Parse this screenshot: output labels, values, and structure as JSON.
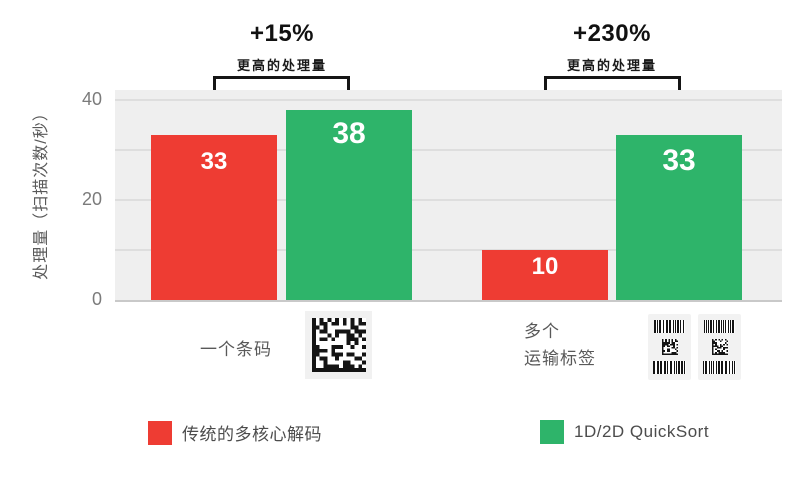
{
  "chart_data": {
    "type": "bar",
    "title": "",
    "categories": [
      "一个条码",
      "多个 运输标签"
    ],
    "series": [
      {
        "name": "传统的多核心解码",
        "color": "#ee3c33",
        "values": [
          33,
          10
        ]
      },
      {
        "name": "1D/2D QuickSort",
        "color": "#2eb46a",
        "values": [
          38,
          33
        ]
      }
    ],
    "ylabel": "处理量（扫描次数/秒）",
    "yticks": [
      0,
      20,
      40
    ],
    "ylim": [
      0,
      42
    ],
    "gridline_values": [
      10,
      20,
      30,
      40
    ],
    "grid": true,
    "legend_position": "bottom",
    "annotations": [
      {
        "percent": "+15%",
        "label": "更高的处理量"
      },
      {
        "percent": "+230%",
        "label": "更高的处理量"
      }
    ]
  },
  "xaxis": {
    "category1_label": "一个条码",
    "category2_line1": "多个",
    "category2_line2": "运输标签"
  },
  "icons": {
    "single_barcode": "datamatrix-barcode-icon",
    "multi_barcode": "shipping-label-icon"
  },
  "colors": {
    "red": "#ee3c33",
    "green": "#2eb46a",
    "plot_background": "#efefef",
    "gridline": "#dedede",
    "tick_text": "#7b7b7b",
    "label_text": "#595959",
    "annotation_text": "#151515"
  }
}
